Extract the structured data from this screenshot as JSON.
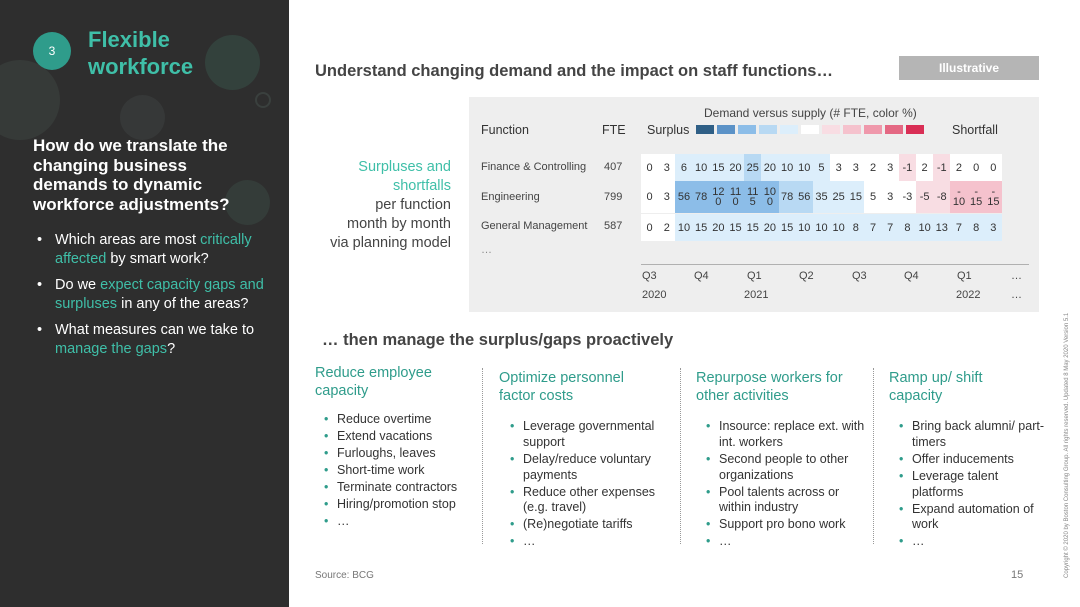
{
  "left": {
    "badge": "3",
    "section_title": "Flexible\nworkforce",
    "question": "How do we translate the changing business demands to dynamic workforce adjustments?",
    "bullets": [
      {
        "pre": "Which areas are most ",
        "hl": "critically affected",
        "post": " by smart work?"
      },
      {
        "pre": "Do we ",
        "hl": "expect capacity gaps and surpluses",
        "post": " in any of the areas?"
      },
      {
        "pre": "What measures can we take to ",
        "hl": "manage the gaps",
        "post": "?"
      }
    ]
  },
  "main_title": "Understand changing demand and the impact on staff functions…",
  "illustrative_label": "Illustrative",
  "side_label": {
    "line1": "Surpluses and",
    "line2": "shortfalls",
    "line3": "per function",
    "line4": "month by month",
    "line5": "via planning model"
  },
  "table": {
    "demand_title": "Demand versus supply (# FTE, color %)",
    "col_function": "Function",
    "col_fte": "FTE",
    "surplus_label": "Surplus",
    "shortfall_label": "Shortfall",
    "legend_colors": [
      "#2f5f86",
      "#5b92c7",
      "#8cbde8",
      "#b8d9f3",
      "#dceefb",
      "#ffffff",
      "#f8dde3",
      "#f5c2cd",
      "#ef98ab",
      "#e46883",
      "#d92e55"
    ],
    "rows": [
      {
        "name": "Finance & Controlling",
        "fte": "407",
        "values": [
          "0",
          "3",
          "6",
          "10",
          "15",
          "20",
          "25",
          "20",
          "10",
          "10",
          "5",
          "3",
          "3",
          "2",
          "3",
          "-1",
          "2",
          "-1",
          "2",
          "0",
          "0"
        ],
        "colors": [
          "#ffffff",
          "#ffffff",
          "#dceefb",
          "#dceefb",
          "#dceefb",
          "#dceefb",
          "#b8d9f3",
          "#dceefb",
          "#dceefb",
          "#dceefb",
          "#dceefb",
          "#ffffff",
          "#ffffff",
          "#ffffff",
          "#ffffff",
          "#f8dde3",
          "#ffffff",
          "#f8dde3",
          "#ffffff",
          "#ffffff",
          "#ffffff"
        ]
      },
      {
        "name": "Engineering",
        "fte": "799",
        "values": [
          "0",
          "3",
          "56",
          "78",
          "12\n0",
          "11\n0",
          "11\n5",
          "10\n0",
          "78",
          "56",
          "35",
          "25",
          "15",
          "5",
          "3",
          "-3",
          "-5",
          "-8",
          "-\n10",
          "-\n15",
          "-\n15"
        ],
        "colors": [
          "#ffffff",
          "#ffffff",
          "#8cbde8",
          "#8cbde8",
          "#8cbde8",
          "#8cbde8",
          "#8cbde8",
          "#8cbde8",
          "#b8d9f3",
          "#b8d9f3",
          "#dceefb",
          "#dceefb",
          "#dceefb",
          "#ffffff",
          "#ffffff",
          "#ffffff",
          "#f8dde3",
          "#f8dde3",
          "#f5c2cd",
          "#f5c2cd",
          "#f5c2cd"
        ]
      },
      {
        "name": "General Management",
        "fte": "587",
        "values": [
          "0",
          "2",
          "10",
          "15",
          "20",
          "15",
          "15",
          "20",
          "15",
          "10",
          "10",
          "10",
          "8",
          "7",
          "7",
          "8",
          "10",
          "13",
          "7",
          "8",
          "3"
        ],
        "colors": [
          "#ffffff",
          "#ffffff",
          "#dceefb",
          "#dceefb",
          "#dceefb",
          "#dceefb",
          "#dceefb",
          "#dceefb",
          "#dceefb",
          "#dceefb",
          "#dceefb",
          "#dceefb",
          "#dceefb",
          "#dceefb",
          "#dceefb",
          "#dceefb",
          "#dceefb",
          "#dceefb",
          "#dceefb",
          "#dceefb",
          "#dceefb"
        ]
      }
    ],
    "row_ellipsis": "…",
    "quarters": [
      "Q3",
      "Q4",
      "Q1",
      "Q2",
      "Q3",
      "Q4",
      "Q1",
      "…"
    ],
    "years": [
      "2020",
      "2021",
      "2022",
      "…"
    ]
  },
  "subtitle": "… then manage the surplus/gaps proactively",
  "columns": [
    {
      "title": "Reduce employee capacity",
      "items": [
        "Reduce overtime",
        "Extend vacations",
        "Furloughs, leaves",
        "Short-time work",
        "Terminate contractors",
        "Hiring/promotion stop",
        "…"
      ]
    },
    {
      "title": "Optimize personnel factor costs",
      "items": [
        "Leverage governmental support",
        "Delay/reduce voluntary payments",
        "Reduce other expenses (e.g. travel)",
        "(Re)negotiate tariffs",
        "…"
      ]
    },
    {
      "title": "Repurpose workers for other activities",
      "items": [
        "Insource: replace ext. with int. workers",
        "Second people to other organizations",
        "Pool talents across or within industry",
        "Support pro bono work",
        "…"
      ]
    },
    {
      "title": "Ramp up/ shift capacity",
      "items": [
        "Bring back alumni/ part-timers",
        "Offer inducements",
        "Leverage talent platforms",
        "Expand automation of work",
        "…"
      ]
    }
  ],
  "source": "Source: BCG",
  "page_number": "15",
  "copyright": "Copyright © 2020 by Boston Consulting Group. All rights reserved.  Updated 8 May 2020 Version 5.1"
}
